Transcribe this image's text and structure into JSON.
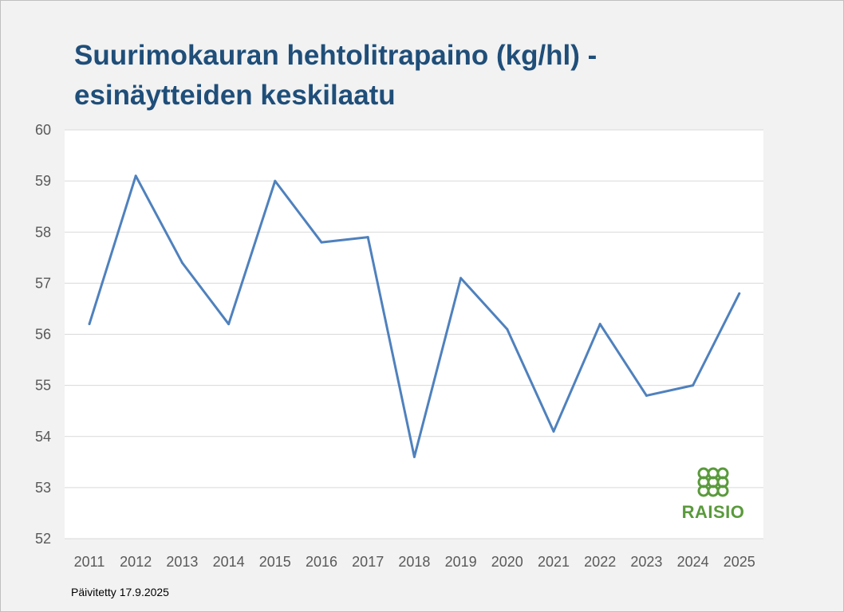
{
  "chart_data": {
    "type": "line",
    "title_line1": "Suurimokauran hehtolitrapaino (kg/hl) -",
    "title_line2": "esinäytteiden keskilaatu",
    "xlabel": "",
    "ylabel": "",
    "x": [
      "2011",
      "2012",
      "2013",
      "2014",
      "2015",
      "2016",
      "2017",
      "2018",
      "2019",
      "2020",
      "2021",
      "2022",
      "2023",
      "2024",
      "2025"
    ],
    "series": [
      {
        "values": [
          56.2,
          59.1,
          57.4,
          56.2,
          59.0,
          57.8,
          57.9,
          53.6,
          57.1,
          56.1,
          54.1,
          56.2,
          54.8,
          55.0,
          56.8
        ]
      }
    ],
    "ylim": [
      52,
      60
    ],
    "yticks": [
      "52",
      "53",
      "54",
      "55",
      "56",
      "57",
      "58",
      "59",
      "60"
    ],
    "grid": true,
    "legend": "none",
    "line_color": "#4f81bd"
  },
  "footer": "Päivitetty 17.9.2025",
  "logo": {
    "text": "RAISIO",
    "color": "#5a9a3c",
    "icon": "raisio-logo-icon"
  }
}
